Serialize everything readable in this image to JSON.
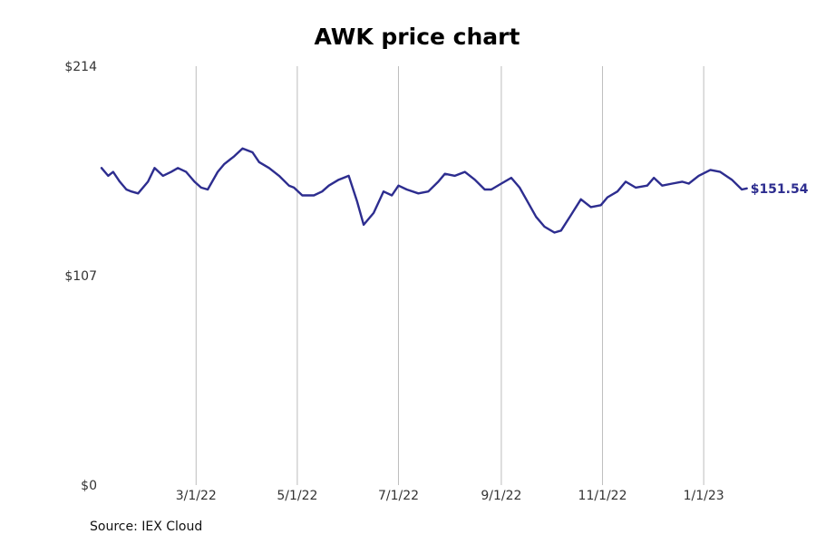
{
  "chart_data": {
    "type": "line",
    "title": "AWK price chart",
    "xlabel": "",
    "ylabel": "",
    "y_ticks": [
      "$0",
      "$107",
      "$214"
    ],
    "y_tick_values": [
      0,
      107,
      214
    ],
    "ylim": [
      0,
      214
    ],
    "x_ticks": [
      "3/1/22",
      "5/1/22",
      "7/1/22",
      "9/1/22",
      "11/1/22",
      "1/1/23"
    ],
    "x_tick_dates": [
      "2022-03-01",
      "2022-05-01",
      "2022-07-01",
      "2022-09-01",
      "2022-11-01",
      "2023-01-01"
    ],
    "xlim": [
      "2022-01-03",
      "2023-02-06"
    ],
    "grid": "vertical",
    "end_label": "$151.54",
    "line_color": "#2d2d8f",
    "series": [
      {
        "dates": [
          "2022-01-03",
          "2022-01-07",
          "2022-01-10",
          "2022-01-14",
          "2022-01-18",
          "2022-01-21",
          "2022-01-25",
          "2022-01-31",
          "2022-02-04",
          "2022-02-09",
          "2022-02-14",
          "2022-02-18",
          "2022-02-23",
          "2022-02-28",
          "2022-03-04",
          "2022-03-08",
          "2022-03-14",
          "2022-03-18",
          "2022-03-24",
          "2022-03-29",
          "2022-04-04",
          "2022-04-08",
          "2022-04-14",
          "2022-04-20",
          "2022-04-26",
          "2022-04-29",
          "2022-05-04",
          "2022-05-11",
          "2022-05-16",
          "2022-05-20",
          "2022-05-26",
          "2022-06-01",
          "2022-06-06",
          "2022-06-10",
          "2022-06-16",
          "2022-06-22",
          "2022-06-27",
          "2022-07-01",
          "2022-07-06",
          "2022-07-13",
          "2022-07-19",
          "2022-07-25",
          "2022-07-29",
          "2022-08-04",
          "2022-08-10",
          "2022-08-16",
          "2022-08-22",
          "2022-08-26",
          "2022-09-01",
          "2022-09-07",
          "2022-09-12",
          "2022-09-16",
          "2022-09-22",
          "2022-09-27",
          "2022-10-03",
          "2022-10-07",
          "2022-10-13",
          "2022-10-19",
          "2022-10-25",
          "2022-10-31",
          "2022-11-04",
          "2022-11-10",
          "2022-11-15",
          "2022-11-21",
          "2022-11-28",
          "2022-12-02",
          "2022-12-07",
          "2022-12-13",
          "2022-12-19",
          "2022-12-23",
          "2022-12-29",
          "2023-01-05",
          "2023-01-11",
          "2023-01-18",
          "2023-01-24",
          "2023-01-27"
        ],
        "values": [
          162,
          158,
          160,
          155,
          151,
          150,
          149,
          155,
          162,
          158,
          160,
          162,
          160,
          155,
          152,
          151,
          160,
          164,
          168,
          172,
          170,
          165,
          162,
          158,
          153,
          152,
          148,
          148,
          150,
          153,
          156,
          158,
          145,
          133,
          139,
          150,
          148,
          153,
          151,
          149,
          150,
          155,
          159,
          158,
          160,
          156,
          151,
          151,
          154,
          157,
          152,
          146,
          137,
          132,
          129,
          130,
          138,
          146,
          142,
          143,
          147,
          150,
          155,
          152,
          153,
          157,
          153,
          154,
          155,
          154,
          158,
          161,
          160,
          156,
          151,
          151.54
        ]
      }
    ]
  }
}
